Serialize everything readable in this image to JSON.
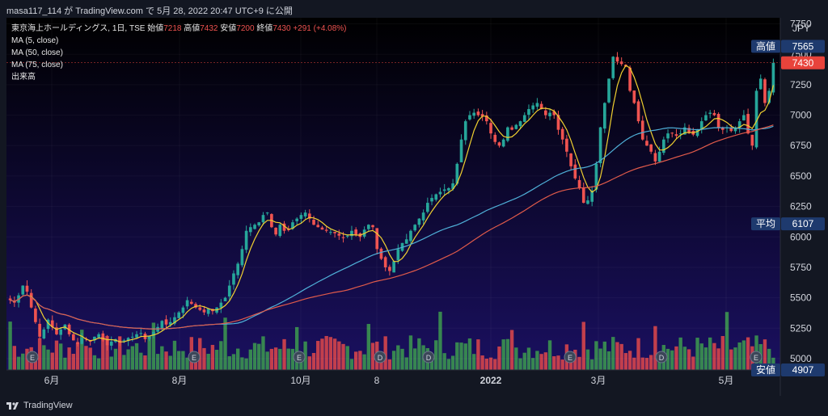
{
  "header": {
    "text": "masa117_114 が TradingView.com で 5月 28, 2022 20:47 UTC+9 に公開"
  },
  "footer": {
    "brand": "TradingView"
  },
  "legend": {
    "symbol": "東京海上ホールディングス, 1日, TSE",
    "open_label": "始値",
    "open": "7218",
    "high_label": "高値",
    "high": "7432",
    "low_label": "安値",
    "low": "7200",
    "close_label": "終値",
    "close": "7430",
    "change": "+291 (+4.08%)",
    "indicators": [
      "MA (5, close)",
      "MA (50, close)",
      "MA (75, close)",
      "出来高"
    ]
  },
  "colors": {
    "background_top": "#000000",
    "background_bottom": "#1a1060",
    "up": "#26a69a",
    "down": "#ef5350",
    "ma5": "#f0d030",
    "ma50": "#4fb0d8",
    "ma75": "#e05a4a",
    "vol_up": "#3d9b4f",
    "vol_down": "#e0484a",
    "tag_blue": "#1e3a6e",
    "tag_red": "#e8433b"
  },
  "chart_data": {
    "type": "candlestick",
    "currency": "JPY",
    "x_ticks": [
      "6月",
      "8月",
      "10月",
      "8",
      "2022",
      "3月",
      "5月"
    ],
    "y_ticks": [
      5000,
      5250,
      5500,
      5750,
      6000,
      6250,
      6500,
      6750,
      7000,
      7250,
      7500,
      7750
    ],
    "ylim": [
      4907,
      7800
    ],
    "price_labels": [
      {
        "text": "高値",
        "value": 7565
      },
      {
        "text": "7430",
        "value": 7430
      },
      {
        "text": "平均",
        "value": 6107
      },
      {
        "text": "安値",
        "value": 4907
      }
    ],
    "event_markers": [
      "E",
      "E",
      "E",
      "D",
      "D",
      "E",
      "D",
      "E"
    ],
    "close_series": [
      5480,
      5460,
      5520,
      5600,
      5550,
      5420,
      5300,
      5180,
      5240,
      5320,
      5260,
      5200,
      5240,
      5280,
      5200,
      5150,
      5120,
      5170,
      5160,
      5140,
      5180,
      5200,
      5150,
      5110,
      5140,
      5160,
      5130,
      5150,
      5170,
      5180,
      5200,
      5210,
      5160,
      5180,
      5220,
      5260,
      5310,
      5280,
      5300,
      5340,
      5380,
      5420,
      5480,
      5450,
      5420,
      5400,
      5380,
      5410,
      5390,
      5420,
      5460,
      5500,
      5600,
      5700,
      5780,
      5900,
      6050,
      6080,
      6100,
      6120,
      6180,
      6200,
      6080,
      6020,
      6100,
      6050,
      6060,
      6120,
      6150,
      6180,
      6200,
      6150,
      6100,
      6080,
      6060,
      6050,
      6040,
      6030,
      6010,
      5990,
      6010,
      6050,
      6020,
      6000,
      6060,
      6100,
      6080,
      5900,
      5820,
      5750,
      5720,
      5800,
      5900,
      5950,
      5980,
      6050,
      6100,
      6150,
      6200,
      6280,
      6320,
      6350,
      6370,
      6390,
      6400,
      6440,
      6600,
      6800,
      6950,
      7000,
      7020,
      7000,
      6990,
      6950,
      6850,
      6780,
      6750,
      6800,
      6900,
      6880,
      6920,
      6950,
      7000,
      7050,
      7080,
      7100,
      7050,
      7000,
      7020,
      7000,
      6880,
      6800,
      6700,
      6580,
      6480,
      6400,
      6280,
      6300,
      6380,
      6600,
      6900,
      7100,
      7300,
      7480,
      7440,
      7420,
      7400,
      7200,
      7100,
      6950,
      6800,
      6750,
      6700,
      6620,
      6700,
      6800,
      6850,
      6850,
      6830,
      6850,
      6900,
      6860,
      6840,
      6880,
      6950,
      7000,
      7020,
      7000,
      6900,
      6880,
      6900,
      6870,
      6900,
      6950,
      7000,
      6850,
      6750,
      7200,
      7300,
      7100,
      7200,
      7430
    ],
    "ma50_end": 6930,
    "ma75_end": 6890,
    "volume_peak": 5620,
    "volume_scale_base": 4907
  }
}
